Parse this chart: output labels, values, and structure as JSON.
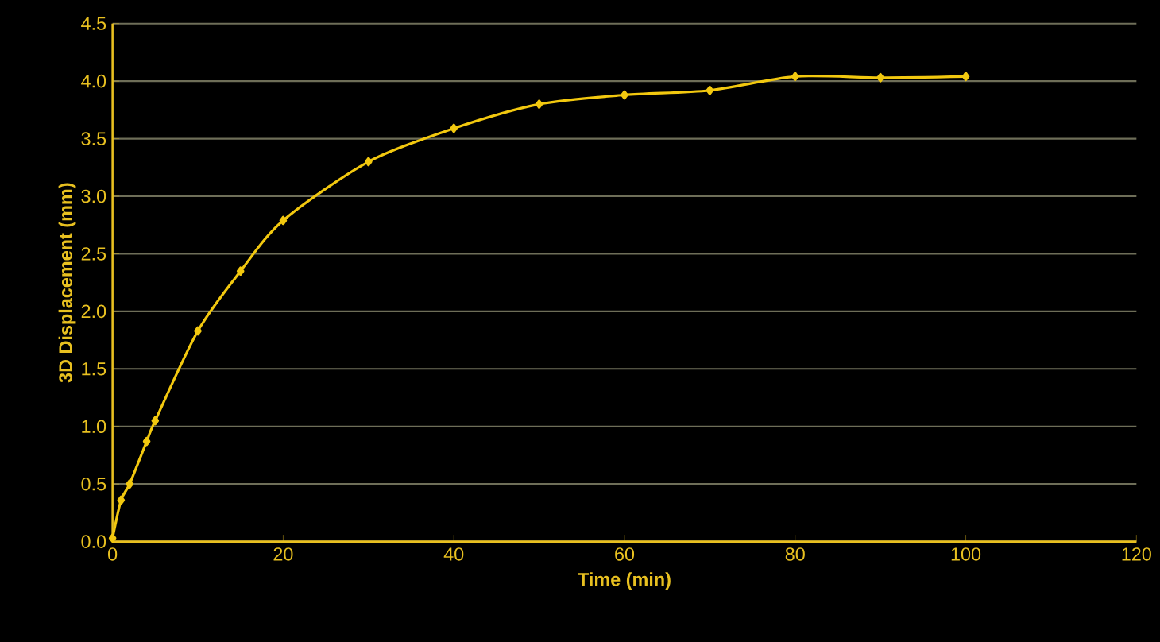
{
  "chart_data": {
    "type": "line",
    "xlabel": "Time (min)",
    "ylabel": "3D Displacement (mm)",
    "x": [
      0,
      1,
      2,
      4,
      5,
      10,
      15,
      20,
      30,
      40,
      50,
      60,
      70,
      80,
      90,
      100
    ],
    "series": [
      {
        "color": "#f2c80f",
        "values": [
          0.03,
          0.36,
          0.5,
          0.87,
          1.05,
          1.83,
          2.35,
          2.79,
          3.3,
          3.59,
          3.8,
          3.88,
          3.92,
          4.04,
          4.03,
          4.04
        ]
      }
    ],
    "xlim": [
      0,
      120
    ],
    "xticks": [
      0,
      20,
      40,
      60,
      80,
      100,
      120
    ],
    "ylim": [
      0,
      4.5
    ],
    "yticks": [
      {
        "value": 0,
        "label": "0.0"
      },
      {
        "value": 0.5,
        "label": "0.5"
      },
      {
        "value": 1,
        "label": "1.0"
      },
      {
        "value": 1.5,
        "label": "1.5"
      },
      {
        "value": 2,
        "label": "2.0"
      },
      {
        "value": 2.5,
        "label": "2.5"
      },
      {
        "value": 3,
        "label": "3.0"
      },
      {
        "value": 3.5,
        "label": "3.5"
      },
      {
        "value": 4,
        "label": "4.0"
      },
      {
        "value": 4.5,
        "label": "4.5"
      }
    ],
    "grid": "y",
    "marker": "diamond",
    "line_style": "solid"
  }
}
